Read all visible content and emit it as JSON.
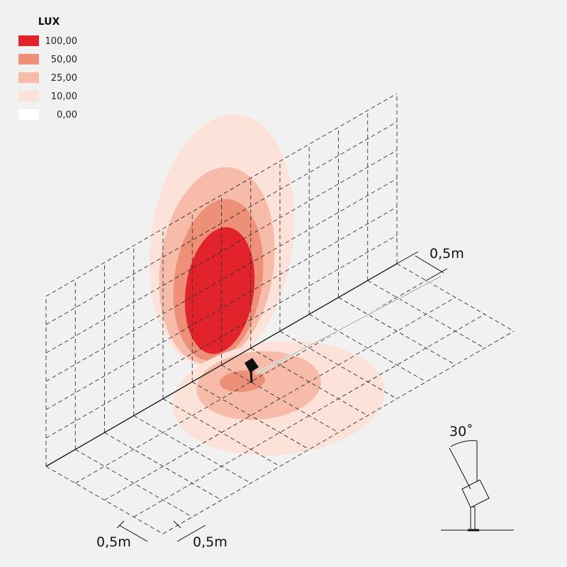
{
  "legend": {
    "title": "LUX",
    "items": [
      {
        "label": "100,00",
        "color": "#e3232c"
      },
      {
        "label": "50,00",
        "color": "#ee8f78"
      },
      {
        "label": "25,00",
        "color": "#f6bca9"
      },
      {
        "label": "10,00",
        "color": "#fce2d9"
      },
      {
        "label": "0,00",
        "color": "#ffffff"
      }
    ]
  },
  "dimensions": [
    "0,5m",
    "0,5m",
    "0,5m"
  ],
  "angle": "30˚"
}
